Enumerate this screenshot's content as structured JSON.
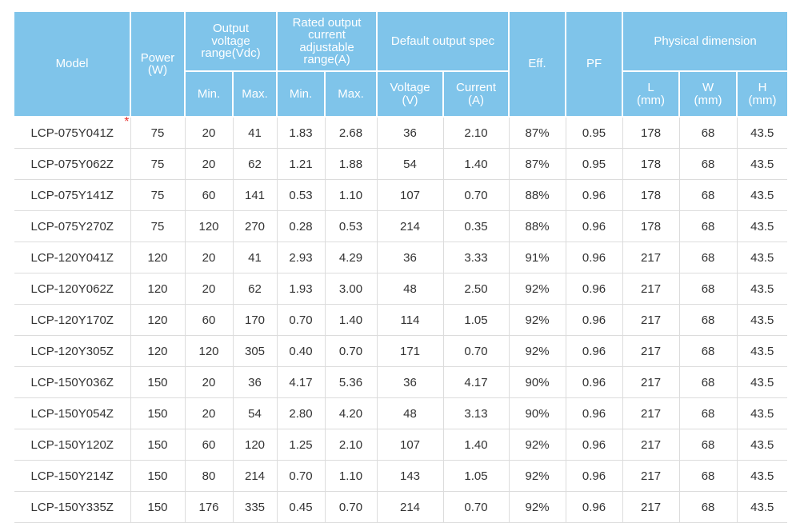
{
  "header": {
    "model": "Model",
    "power": [
      "Power",
      "(W)"
    ],
    "output_voltage": [
      "Output",
      "voltage",
      "range(Vdc)"
    ],
    "rated_current": [
      "Rated output",
      "current",
      "adjustable",
      "range(A)"
    ],
    "default_spec": "Default output spec",
    "eff": "Eff.",
    "pf": "PF",
    "physical": "Physical dimension",
    "min": "Min.",
    "max": "Max.",
    "voltage": [
      "Voltage",
      "(V)"
    ],
    "current": [
      "Current",
      "(A)"
    ],
    "l": [
      "L",
      "(mm)"
    ],
    "w": [
      "W",
      "(mm)"
    ],
    "h": [
      "H",
      "(mm)"
    ]
  },
  "marker": "*",
  "rows": [
    [
      "LCP-075Y041Z",
      "75",
      "20",
      "41",
      "1.83",
      "2.68",
      "36",
      "2.10",
      "87%",
      "0.95",
      "178",
      "68",
      "43.5"
    ],
    [
      "LCP-075Y062Z",
      "75",
      "20",
      "62",
      "1.21",
      "1.88",
      "54",
      "1.40",
      "87%",
      "0.95",
      "178",
      "68",
      "43.5"
    ],
    [
      "LCP-075Y141Z",
      "75",
      "60",
      "141",
      "0.53",
      "1.10",
      "107",
      "0.70",
      "88%",
      "0.96",
      "178",
      "68",
      "43.5"
    ],
    [
      "LCP-075Y270Z",
      "75",
      "120",
      "270",
      "0.28",
      "0.53",
      "214",
      "0.35",
      "88%",
      "0.96",
      "178",
      "68",
      "43.5"
    ],
    [
      "LCP-120Y041Z",
      "120",
      "20",
      "41",
      "2.93",
      "4.29",
      "36",
      "3.33",
      "91%",
      "0.96",
      "217",
      "68",
      "43.5"
    ],
    [
      "LCP-120Y062Z",
      "120",
      "20",
      "62",
      "1.93",
      "3.00",
      "48",
      "2.50",
      "92%",
      "0.96",
      "217",
      "68",
      "43.5"
    ],
    [
      "LCP-120Y170Z",
      "120",
      "60",
      "170",
      "0.70",
      "1.40",
      "114",
      "1.05",
      "92%",
      "0.96",
      "217",
      "68",
      "43.5"
    ],
    [
      "LCP-120Y305Z",
      "120",
      "120",
      "305",
      "0.40",
      "0.70",
      "171",
      "0.70",
      "92%",
      "0.96",
      "217",
      "68",
      "43.5"
    ],
    [
      "LCP-150Y036Z",
      "150",
      "20",
      "36",
      "4.17",
      "5.36",
      "36",
      "4.17",
      "90%",
      "0.96",
      "217",
      "68",
      "43.5"
    ],
    [
      "LCP-150Y054Z",
      "150",
      "20",
      "54",
      "2.80",
      "4.20",
      "48",
      "3.13",
      "90%",
      "0.96",
      "217",
      "68",
      "43.5"
    ],
    [
      "LCP-150Y120Z",
      "150",
      "60",
      "120",
      "1.25",
      "2.10",
      "107",
      "1.40",
      "92%",
      "0.96",
      "217",
      "68",
      "43.5"
    ],
    [
      "LCP-150Y214Z",
      "150",
      "80",
      "214",
      "0.70",
      "1.10",
      "143",
      "1.05",
      "92%",
      "0.96",
      "217",
      "68",
      "43.5"
    ],
    [
      "LCP-150Y335Z",
      "150",
      "176",
      "335",
      "0.45",
      "0.70",
      "214",
      "0.70",
      "92%",
      "0.96",
      "217",
      "68",
      "43.5"
    ]
  ]
}
